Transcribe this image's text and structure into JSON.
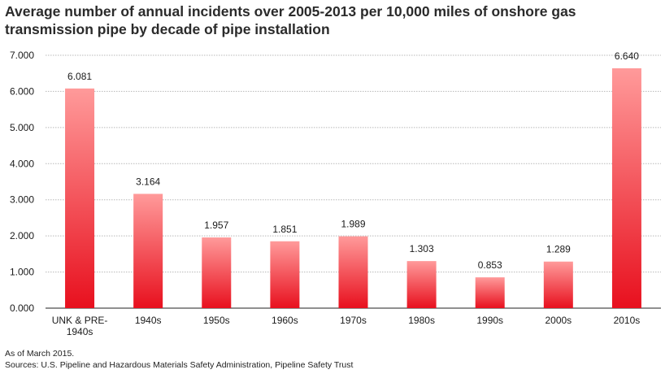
{
  "chart_data": {
    "type": "bar",
    "title": "Average number of annual incidents over 2005-2013 per 10,000 miles of onshore gas transmission pipe by decade of pipe installation",
    "categories": [
      "UNK & PRE-1940s",
      "1940s",
      "1950s",
      "1960s",
      "1970s",
      "1980s",
      "1990s",
      "2000s",
      "2010s"
    ],
    "category_lines": [
      [
        "UNK & PRE-",
        "1940s"
      ],
      [
        "1940s"
      ],
      [
        "1950s"
      ],
      [
        "1960s"
      ],
      [
        "1970s"
      ],
      [
        "1980s"
      ],
      [
        "1990s"
      ],
      [
        "2000s"
      ],
      [
        "2010s"
      ]
    ],
    "values": [
      6.081,
      3.164,
      1.957,
      1.851,
      1.989,
      1.303,
      0.853,
      1.289,
      6.64
    ],
    "value_labels": [
      "6.081",
      "3.164",
      "1.957",
      "1.851",
      "1.989",
      "1.303",
      "0.853",
      "1.289",
      "6.640"
    ],
    "y_ticks": [
      "0.000",
      "1.000",
      "2.000",
      "3.000",
      "4.000",
      "5.000",
      "6.000",
      "7.000"
    ],
    "ylim": [
      0,
      7
    ],
    "xlabel": "",
    "ylabel": "",
    "grid": true,
    "bar_color_top": "#ff9a9a",
    "bar_color_bottom": "#e8101e"
  },
  "notes": {
    "as_of": "As of March 2015.",
    "sources": "Sources: U.S. Pipeline and Hazardous Materials Safety Administration, Pipeline Safety Trust"
  }
}
